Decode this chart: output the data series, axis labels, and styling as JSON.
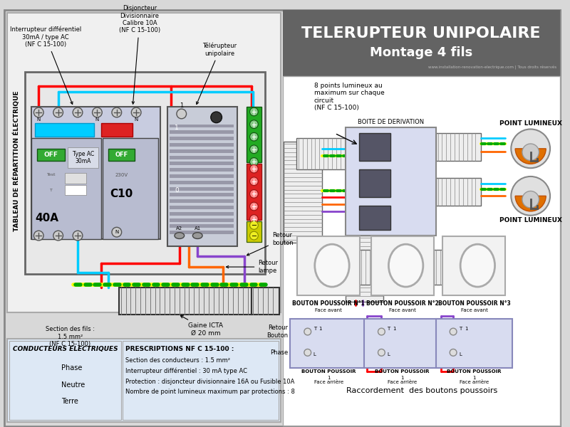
{
  "title_line1": "TELERUPTEUR UNIPOLAIRE",
  "title_line2": "Montage 4 fils",
  "title_bg": "#636363",
  "website": "www.installation-renovation-electrique.com | Tous droits réservés",
  "bg_color": "#d8d8d8",
  "legend_bg": "#dde8f5",
  "phase_color": "#ff0000",
  "neutre_color": "#00ccff",
  "terre_color_y": "#ffff00",
  "terre_color_g": "#00aa00",
  "purple_color": "#8844cc",
  "orange_color": "#ff6600",
  "prescriptions_title": "PRESCRIPTIONS NF C 15-100 :",
  "prescriptions": [
    "Section des conducteurs : 1.5 mm²",
    "Interrupteur différentiel : 30 mA type AC",
    "Protection : disjoncteur divisionnaire 16A ou Fusible 10A",
    "Nombre de point lumineux maximum par protections : 8"
  ],
  "label_diff": "Interrupteur différentiel\n30mA / type AC\n(NF C 15-100)",
  "label_disj": "Disjoncteur\nDivisionnaire\nCalibre 10A\n(NF C 15-100)",
  "label_tele": "Télérupteur\nunipolaire",
  "label_tableau": "TABLEAU DE RÉPARTITION ÉLECTRIQUE",
  "label_section": "Section des fils :\n1.5 mm²\n(NF C 15-100)",
  "label_gaine": "Gaine ICTA\nØ 20 mm",
  "label_retour_bouton": "Retour\nbouton",
  "label_retour_lampe": "Retour\nlampe",
  "label_8points": "8 points lumineux au\nmaximum sur chaque\ncircuit\n(NF C 15-100)",
  "label_boite": "BOITE DE DERIVATION",
  "label_point1": "POINT LUMINEUX",
  "label_point2": "POINT LUMINEUX",
  "label_btn1": "BOUTON POUSSOIR N°1",
  "label_btn2": "BOUTON POUSSOIR N°2",
  "label_btn3": "BOUTON POUSSOIR N°3",
  "label_face_avant": "Face avant",
  "label_raccordement": "Raccordement  des boutons poussoirs",
  "conductors_title": "CONDUCTEURS ELECTRIQUES",
  "phase_label": "Phase",
  "neutre_label": "Neutre",
  "terre_label": "Terre"
}
